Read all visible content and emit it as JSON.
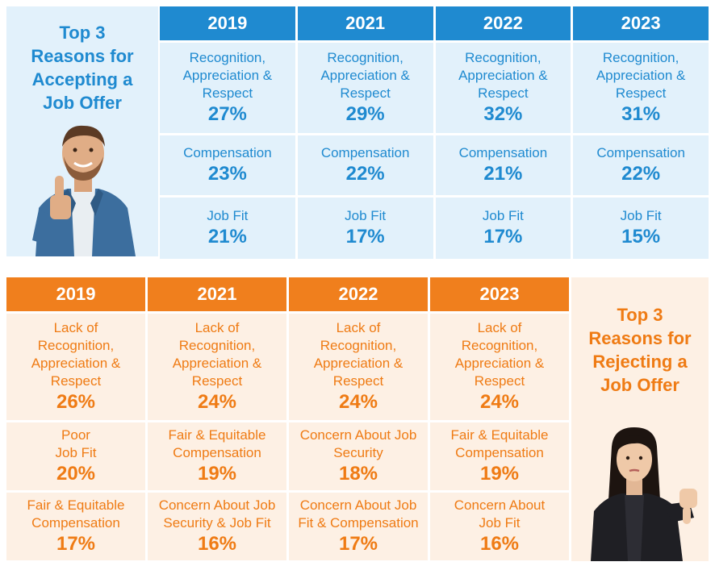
{
  "accepting": {
    "title": "Top 3\nReasons for\nAccepting a\nJob Offer",
    "years": [
      "2019",
      "2021",
      "2022",
      "2023"
    ],
    "rows": [
      {
        "reasons": [
          "Recognition,\nAppreciation &\nRespect",
          "Recognition,\nAppreciation &\nRespect",
          "Recognition,\nAppreciation &\nRespect",
          "Recognition,\nAppreciation &\nRespect"
        ],
        "values": [
          "27%",
          "29%",
          "32%",
          "31%"
        ]
      },
      {
        "reasons": [
          "Compensation",
          "Compensation",
          "Compensation",
          "Compensation"
        ],
        "values": [
          "23%",
          "22%",
          "21%",
          "22%"
        ]
      },
      {
        "reasons": [
          "Job Fit",
          "Job Fit",
          "Job Fit",
          "Job Fit"
        ],
        "values": [
          "21%",
          "17%",
          "17%",
          "15%"
        ]
      }
    ]
  },
  "rejecting": {
    "title": "Top 3\nReasons for\nRejecting a\nJob Offer",
    "years": [
      "2019",
      "2021",
      "2022",
      "2023"
    ],
    "rows": [
      {
        "reasons": [
          "Lack of\nRecognition,\nAppreciation &\nRespect",
          "Lack of\nRecognition,\nAppreciation &\nRespect",
          "Lack of\nRecognition,\nAppreciation &\nRespect",
          "Lack of\nRecognition,\nAppreciation &\nRespect"
        ],
        "values": [
          "26%",
          "24%",
          "24%",
          "24%"
        ]
      },
      {
        "reasons": [
          "Poor\nJob Fit",
          "Fair & Equitable\nCompensation",
          "Concern About Job\nSecurity",
          "Fair & Equitable\nCompensation"
        ],
        "values": [
          "20%",
          "19%",
          "18%",
          "19%"
        ]
      },
      {
        "reasons": [
          "Fair & Equitable\nCompensation",
          "Concern About Job\nSecurity & Job Fit",
          "Concern About Job\nFit & Compensation",
          "Concern About\nJob Fit"
        ],
        "values": [
          "17%",
          "16%",
          "17%",
          "16%"
        ]
      }
    ]
  },
  "colors": {
    "blue": "#1f8ad0",
    "light_blue": "#e2f1fb",
    "orange": "#f07f1d",
    "light_orange": "#fdf0e4"
  },
  "icons": {
    "accept_photo": "man-thumbs-up-icon",
    "reject_photo": "woman-thumbs-down-icon"
  }
}
